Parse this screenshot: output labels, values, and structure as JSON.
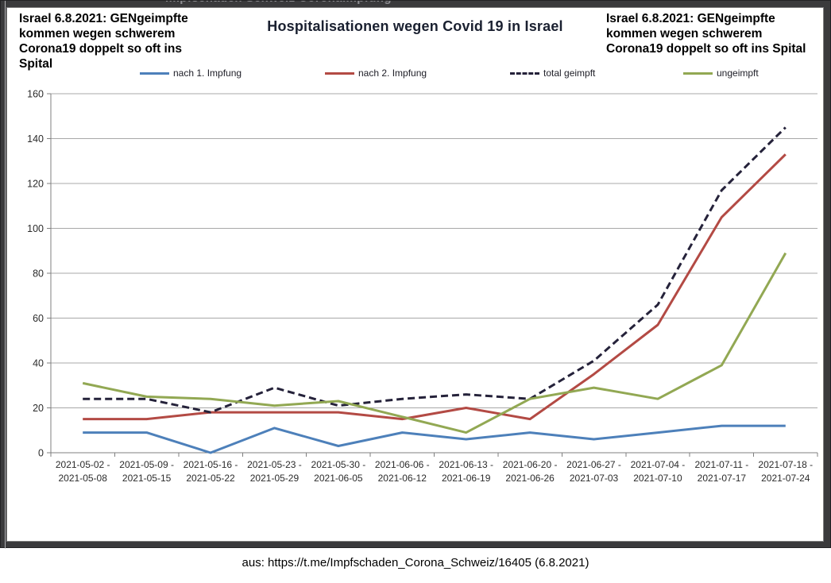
{
  "window": {
    "background_cropped_text": "Impfschaden Schweiz Coronaimpfung"
  },
  "annotations": {
    "headline_left": "Israel 6.8.2021: GENgeimpfte\nkommen wegen schwerem\nCorona19 doppelt so oft ins Spital",
    "headline_right": "Israel 6.8.2021: GENgeimpfte\nkommen wegen schwerem\nCorona19 doppelt so oft ins Spital"
  },
  "caption": "aus: https://t.me/Impfschaden_Corona_Schweiz/16405 (6.8.2021)",
  "chart_data": {
    "type": "line",
    "title": "Hospitalisationen wegen Covid 19 in Israel",
    "xlabel": "",
    "ylabel": "",
    "ylim": [
      0,
      160
    ],
    "ytick_step": 20,
    "grid": true,
    "legend_position": "top",
    "categories": [
      "2021-05-02 -\n2021-05-08",
      "2021-05-09 -\n2021-05-15",
      "2021-05-16 -\n2021-05-22",
      "2021-05-23 -\n2021-05-29",
      "2021-05-30 -\n2021-06-05",
      "2021-06-06 -\n2021-06-12",
      "2021-06-13 -\n2021-06-19",
      "2021-06-20 -\n2021-06-26",
      "2021-06-27 -\n2021-07-03",
      "2021-07-04 -\n2021-07-10",
      "2021-07-11 -\n2021-07-17",
      "2021-07-18 -\n2021-07-24"
    ],
    "series": [
      {
        "name": "nach 1. Impfung",
        "color": "#4d80ba",
        "dashed": false,
        "values": [
          9,
          9,
          0,
          11,
          3,
          9,
          6,
          9,
          6,
          9,
          12,
          12
        ]
      },
      {
        "name": "nach 2. Impfung",
        "color": "#b34a44",
        "dashed": false,
        "values": [
          15,
          15,
          18,
          18,
          18,
          15,
          20,
          15,
          35,
          57,
          105,
          133
        ]
      },
      {
        "name": "total geimpft",
        "color": "#25223a",
        "dashed": true,
        "values": [
          24,
          24,
          18,
          29,
          21,
          24,
          26,
          24,
          41,
          66,
          117,
          145
        ]
      },
      {
        "name": "ungeimpft",
        "color": "#92a853",
        "dashed": false,
        "values": [
          31,
          25,
          24,
          21,
          23,
          16,
          9,
          24,
          29,
          24,
          39,
          89
        ]
      }
    ],
    "colors": {
      "gridline": "#a8a8a8",
      "axis": "#7f7f7f",
      "tick_label": "#2b2b2b"
    }
  }
}
